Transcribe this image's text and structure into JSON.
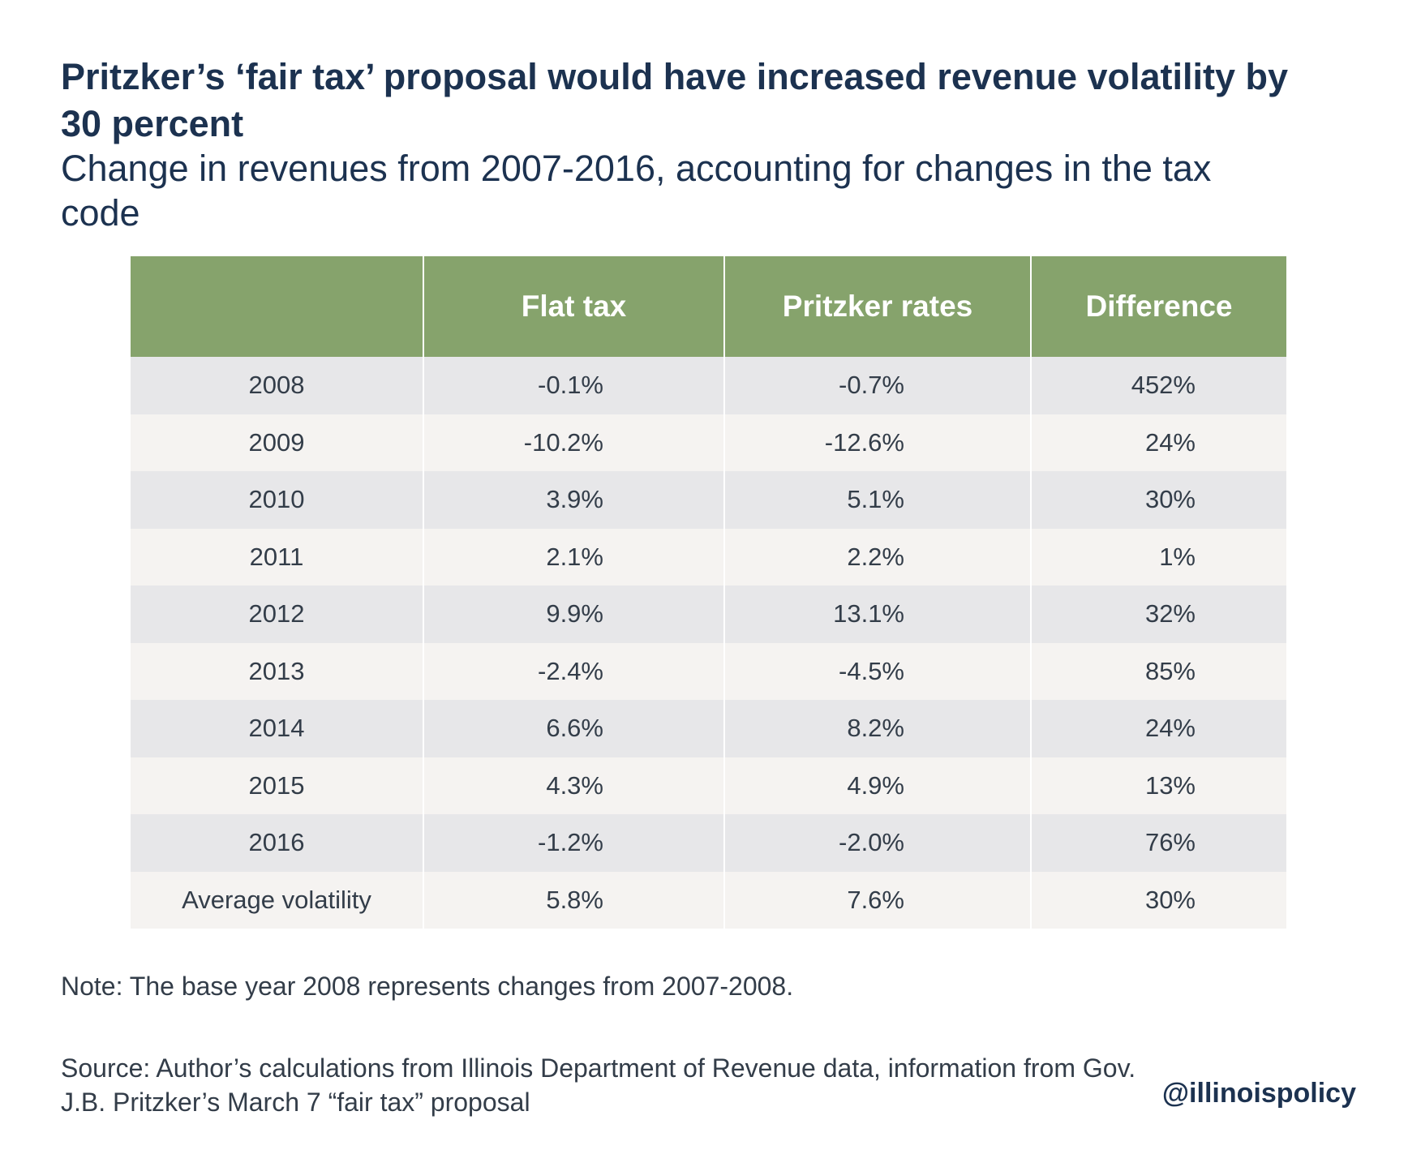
{
  "title": "Pritzker’s ‘fair tax’ proposal would have increased revenue volatility by 30 percent",
  "subtitle": "Change in revenues from 2007-2016, accounting for changes in the tax code",
  "chart_data": {
    "type": "table",
    "columns": [
      "",
      "Flat tax",
      "Pritzker rates",
      "Difference"
    ],
    "rows": [
      {
        "label": "2008",
        "flat": "-0.1%",
        "pritzker": "-0.7%",
        "difference": "452%"
      },
      {
        "label": "2009",
        "flat": "-10.2%",
        "pritzker": "-12.6%",
        "difference": "24%"
      },
      {
        "label": "2010",
        "flat": "3.9%",
        "pritzker": "5.1%",
        "difference": "30%"
      },
      {
        "label": "2011",
        "flat": "2.1%",
        "pritzker": "2.2%",
        "difference": "1%"
      },
      {
        "label": "2012",
        "flat": "9.9%",
        "pritzker": "13.1%",
        "difference": "32%"
      },
      {
        "label": "2013",
        "flat": "-2.4%",
        "pritzker": "-4.5%",
        "difference": "85%"
      },
      {
        "label": "2014",
        "flat": "6.6%",
        "pritzker": "8.2%",
        "difference": "24%"
      },
      {
        "label": "2015",
        "flat": "4.3%",
        "pritzker": "4.9%",
        "difference": "13%"
      },
      {
        "label": "2016",
        "flat": "-1.2%",
        "pritzker": "-2.0%",
        "difference": "76%"
      },
      {
        "label": "Average volatility",
        "flat": "5.8%",
        "pritzker": "7.6%",
        "difference": "30%"
      }
    ]
  },
  "note": "Note: The base year 2008 represents changes from 2007-2008.",
  "source": "Source: Author’s calculations from Illinois Department of Revenue data, information from Gov. J.B. Pritzker’s March 7 “fair tax” proposal",
  "handle": "@illinoispolicy",
  "colors": {
    "header_bg": "#86a36c",
    "row_odd": "#e7e7e9",
    "row_even": "#f5f3f1",
    "title": "#1c3250"
  }
}
